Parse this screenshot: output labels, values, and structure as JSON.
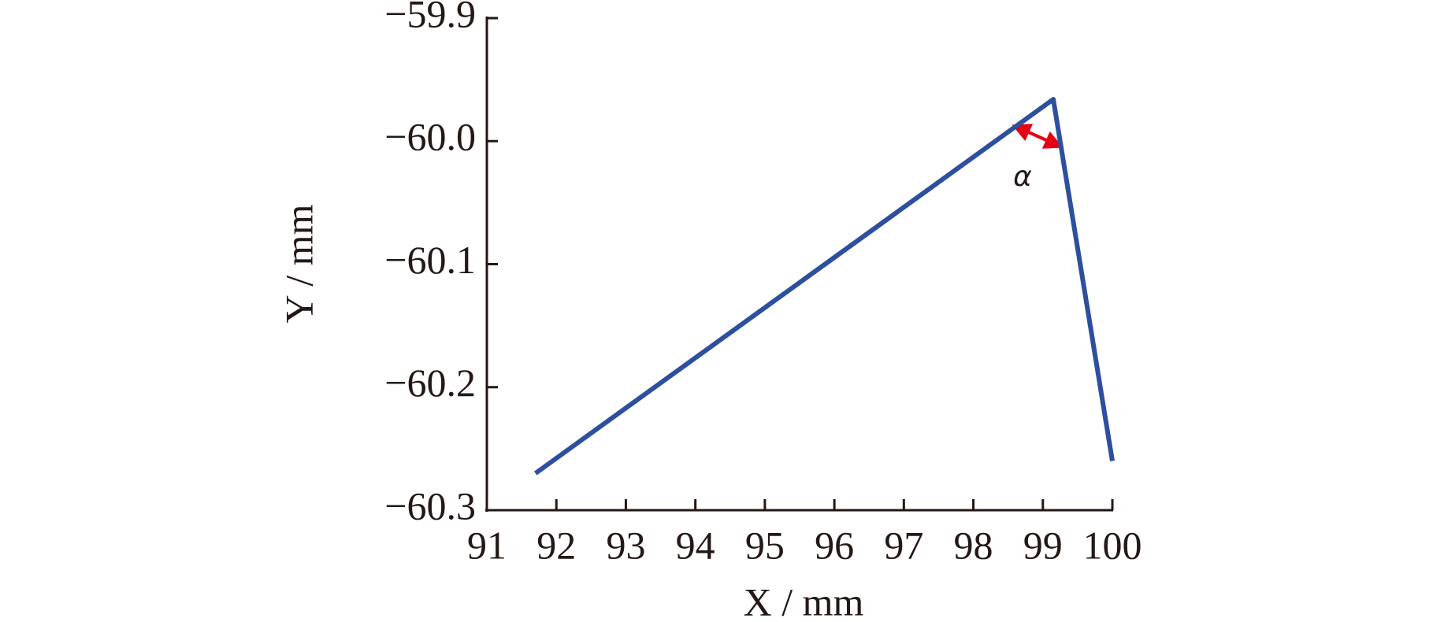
{
  "chart_data": {
    "type": "line",
    "x": [
      91.7,
      99.15,
      100
    ],
    "values": [
      -60.27,
      -59.966,
      -60.26
    ],
    "color": "#2d4f9e",
    "xlim": [
      91,
      100
    ],
    "xticks": [
      91,
      92,
      93,
      94,
      95,
      96,
      97,
      98,
      99,
      100
    ],
    "ylim": [
      -60.3,
      -59.9
    ],
    "yticks": [
      {
        "value": -60.3,
        "label": "−60.3"
      },
      {
        "value": -60.2,
        "label": "−60.2"
      },
      {
        "value": -60.1,
        "label": "−60.1"
      },
      {
        "value": -60.0,
        "label": "−60.0"
      },
      {
        "value": -59.9,
        "label": "−59.9"
      }
    ],
    "x_label": "X / mm",
    "y_label": "Y / mm",
    "annotation": "α"
  }
}
